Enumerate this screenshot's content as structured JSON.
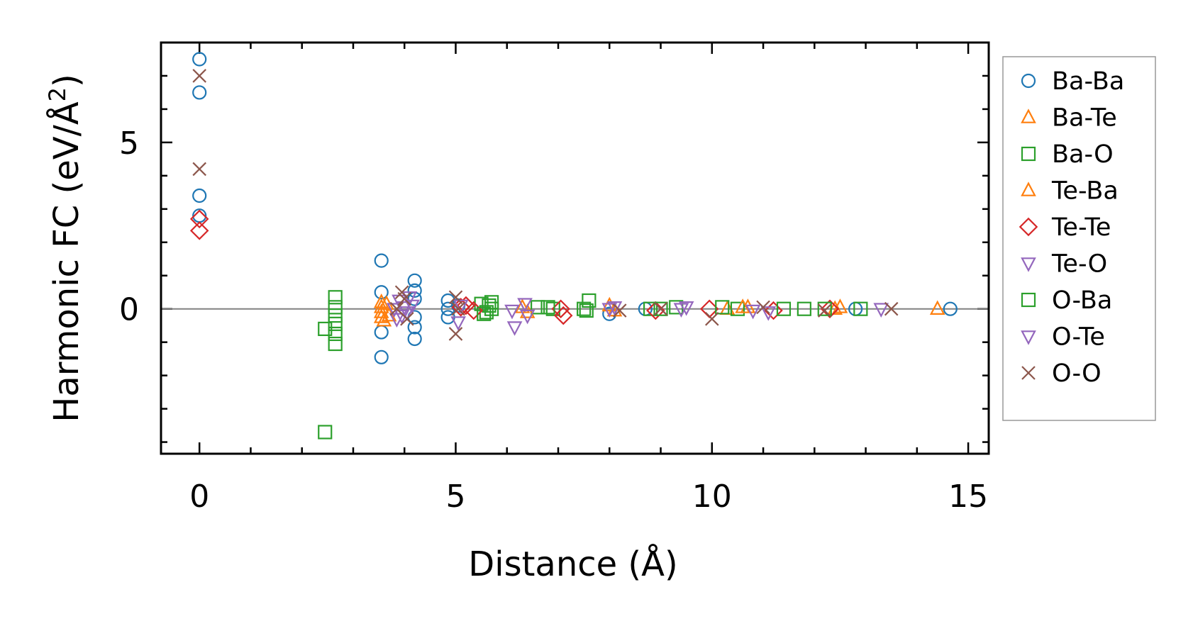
{
  "chart_data": {
    "type": "scatter",
    "title": "",
    "xlabel": "Distance (Å)",
    "ylabel_main": "Harmonic FC (eV/Å",
    "ylabel_sup": "2",
    "ylabel_end": ")",
    "xlim": [
      -0.75,
      15.4
    ],
    "ylim": [
      -4.35,
      8.0
    ],
    "x_major_ticks": [
      0,
      5,
      10,
      15
    ],
    "x_minor_ticks": [
      1,
      2,
      3,
      4,
      6,
      7,
      8,
      9,
      11,
      12,
      13,
      14
    ],
    "x_tick_labels": [
      "0",
      "5",
      "10",
      "15"
    ],
    "y_major_ticks": [
      0,
      5
    ],
    "y_minor_ticks": [
      -4,
      -3,
      -2,
      -1,
      1,
      2,
      3,
      4,
      6,
      7
    ],
    "y_tick_labels": [
      "0",
      "5"
    ],
    "zero_line": true,
    "grid": false,
    "legend_position": "right-outside",
    "series": [
      {
        "name": "Ba-Ba",
        "marker": "circle",
        "color": "#1f77b4",
        "points": [
          [
            0,
            7.5
          ],
          [
            0,
            6.5
          ],
          [
            0,
            3.4
          ],
          [
            0,
            2.8
          ],
          [
            3.55,
            1.45
          ],
          [
            3.55,
            0.5
          ],
          [
            3.55,
            -0.7
          ],
          [
            3.55,
            -1.45
          ],
          [
            4.2,
            0.85
          ],
          [
            4.2,
            0.55
          ],
          [
            4.2,
            0.3
          ],
          [
            4.2,
            -0.25
          ],
          [
            4.2,
            -0.55
          ],
          [
            4.2,
            -0.9
          ],
          [
            4.85,
            0.25
          ],
          [
            4.85,
            0.0
          ],
          [
            4.85,
            -0.25
          ],
          [
            5.05,
            0.1
          ],
          [
            8.0,
            -0.15
          ],
          [
            8.7,
            0.0
          ],
          [
            12.8,
            0.0
          ],
          [
            14.65,
            0.0
          ]
        ]
      },
      {
        "name": "Ba-Te",
        "marker": "triangle-up",
        "color": "#ff7f0e",
        "points": [
          [
            3.55,
            0.2
          ],
          [
            3.55,
            0.05
          ],
          [
            3.55,
            -0.1
          ],
          [
            3.55,
            -0.25
          ],
          [
            3.65,
            0.15
          ],
          [
            6.3,
            0.05
          ],
          [
            8.0,
            0.1
          ],
          [
            10.3,
            0.0
          ],
          [
            10.7,
            0.05
          ],
          [
            12.5,
            0.05
          ],
          [
            14.4,
            0.0
          ]
        ]
      },
      {
        "name": "Ba-O",
        "marker": "square",
        "color": "#2ca02c",
        "points": [
          [
            2.45,
            -0.6
          ],
          [
            2.45,
            -3.7
          ],
          [
            2.65,
            0.35
          ],
          [
            2.65,
            0.05
          ],
          [
            2.65,
            -0.2
          ],
          [
            2.65,
            -0.45
          ],
          [
            2.65,
            -0.75
          ],
          [
            2.65,
            -1.05
          ],
          [
            5.5,
            0.15
          ],
          [
            5.6,
            -0.1
          ],
          [
            5.65,
            0.1
          ],
          [
            5.7,
            0.0
          ],
          [
            6.6,
            0.05
          ],
          [
            6.9,
            0.0
          ],
          [
            7.5,
            0.0
          ],
          [
            7.6,
            0.25
          ],
          [
            8.8,
            0.0
          ],
          [
            9.3,
            0.05
          ],
          [
            10.5,
            0.0
          ],
          [
            11.8,
            0.0
          ],
          [
            12.9,
            0.0
          ]
        ]
      },
      {
        "name": "Te-Ba",
        "marker": "triangle-up",
        "color": "#ff7f0e",
        "points": [
          [
            3.6,
            -0.35
          ],
          [
            3.7,
            -0.2
          ],
          [
            6.4,
            -0.1
          ],
          [
            8.1,
            -0.05
          ],
          [
            10.6,
            0.05
          ],
          [
            12.4,
            0.0
          ]
        ]
      },
      {
        "name": "Te-Te",
        "marker": "diamond",
        "color": "#d62728",
        "points": [
          [
            0,
            2.7
          ],
          [
            0,
            2.35
          ],
          [
            5.1,
            0.05
          ],
          [
            5.2,
            0.1
          ],
          [
            5.35,
            -0.05
          ],
          [
            7.05,
            0.0
          ],
          [
            7.1,
            -0.2
          ],
          [
            8.9,
            -0.05
          ],
          [
            9.95,
            0.0
          ],
          [
            11.2,
            -0.05
          ],
          [
            12.3,
            0.0
          ]
        ]
      },
      {
        "name": "Te-O",
        "marker": "triangle-down",
        "color": "#9467bd",
        "points": [
          [
            3.9,
            0.25
          ],
          [
            3.95,
            -0.2
          ],
          [
            4.0,
            0.05
          ],
          [
            4.05,
            -0.1
          ],
          [
            4.15,
            0.1
          ],
          [
            5.05,
            -0.4
          ],
          [
            5.1,
            0.1
          ],
          [
            6.1,
            -0.05
          ],
          [
            6.15,
            -0.55
          ],
          [
            6.35,
            0.15
          ],
          [
            8.0,
            0.0
          ],
          [
            9.4,
            0.0
          ],
          [
            10.8,
            -0.05
          ],
          [
            13.3,
            0.0
          ]
        ]
      },
      {
        "name": "O-Ba",
        "marker": "square",
        "color": "#2ca02c",
        "points": [
          [
            5.55,
            -0.15
          ],
          [
            5.7,
            0.2
          ],
          [
            6.8,
            0.05
          ],
          [
            7.55,
            -0.05
          ],
          [
            9.0,
            0.0
          ],
          [
            10.2,
            0.05
          ],
          [
            11.4,
            0.0
          ],
          [
            12.2,
            0.0
          ]
        ]
      },
      {
        "name": "O-Te",
        "marker": "triangle-down",
        "color": "#9467bd",
        "points": [
          [
            3.8,
            0.0
          ],
          [
            3.85,
            -0.3
          ],
          [
            4.1,
            0.35
          ],
          [
            6.4,
            -0.2
          ],
          [
            8.1,
            0.05
          ],
          [
            9.5,
            0.05
          ],
          [
            11.1,
            -0.1
          ]
        ]
      },
      {
        "name": "O-O",
        "marker": "x",
        "color": "#8c564b",
        "points": [
          [
            0,
            7.0
          ],
          [
            0,
            4.2
          ],
          [
            3.85,
            0.0
          ],
          [
            3.95,
            0.5
          ],
          [
            4.0,
            0.3
          ],
          [
            4.05,
            -0.3
          ],
          [
            5.0,
            0.35
          ],
          [
            5.0,
            -0.75
          ],
          [
            5.05,
            0.0
          ],
          [
            8.2,
            -0.05
          ],
          [
            9.0,
            0.0
          ],
          [
            10.0,
            -0.3
          ],
          [
            11.0,
            0.05
          ],
          [
            12.2,
            -0.05
          ],
          [
            13.5,
            0.0
          ]
        ]
      }
    ]
  }
}
